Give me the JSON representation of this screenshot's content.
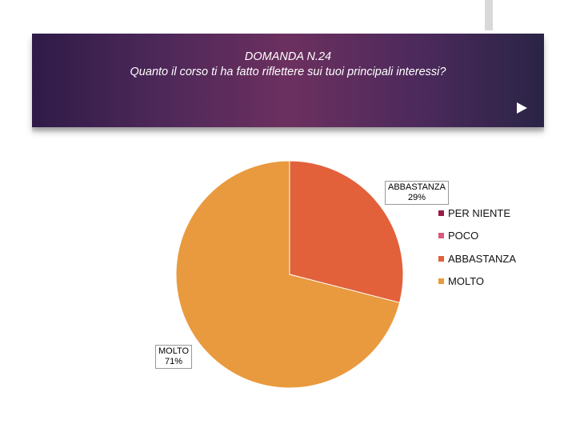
{
  "header": {
    "title_line1": "DOMANDA N.24",
    "title_line2": "Quanto il corso ti ha fatto riflettere sui tuoi principali interessi?"
  },
  "chart_data": {
    "type": "pie",
    "categories": [
      "PER NIENTE",
      "POCO",
      "ABBASTANZA",
      "MOLTO"
    ],
    "values": [
      0,
      0,
      29,
      71
    ],
    "value_labels": [
      "",
      "",
      "29%",
      "71%"
    ],
    "colors": [
      "#9b1b45",
      "#d9597c",
      "#e2613b",
      "#e99a3e"
    ],
    "legend": "right",
    "start_angle_deg": 0,
    "direction": "clockwise"
  },
  "labels": {
    "abbastanza": {
      "name": "ABBASTANZA",
      "value": "29%"
    },
    "molto": {
      "name": "MOLTO",
      "value": "71%"
    }
  }
}
